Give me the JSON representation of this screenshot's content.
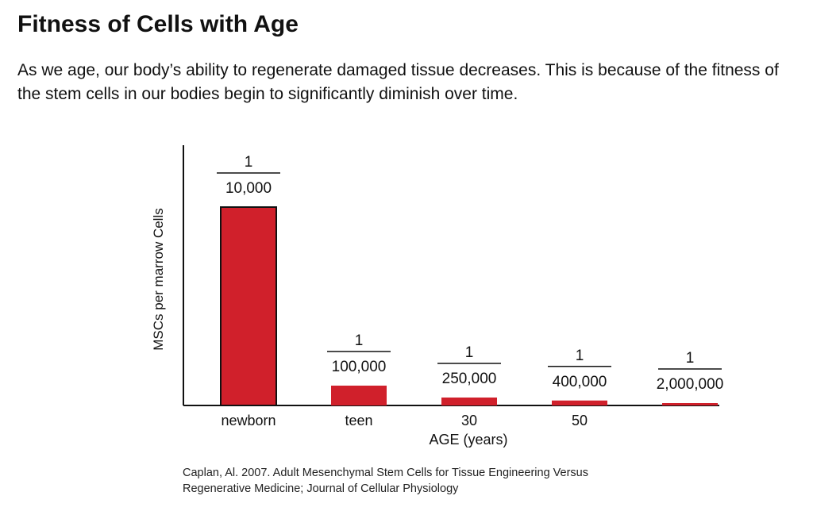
{
  "header": {
    "title": "Fitness of Cells with Age",
    "intro": "As we age, our body’s ability to regenerate damaged tissue decreases.  This is because of the fitness of the stem cells in our bodies begin to significantly diminish over time."
  },
  "chart_data": {
    "type": "bar",
    "categories": [
      "newborn",
      "teen",
      "30",
      "50",
      ""
    ],
    "values": [
      0.0001,
      1e-05,
      4e-06,
      2.5e-06,
      5e-07
    ],
    "data_labels": [
      {
        "numerator": "1",
        "denominator": "10,000"
      },
      {
        "numerator": "1",
        "denominator": "100,000"
      },
      {
        "numerator": "1",
        "denominator": "250,000"
      },
      {
        "numerator": "1",
        "denominator": "400,000"
      },
      {
        "numerator": "1",
        "denominator": "2,000,000"
      }
    ],
    "xlabel": "AGE (years)",
    "ylabel": "MSCs per marrow Cells",
    "bar_color": "#d0202b",
    "grid": false
  },
  "citation": {
    "line1": "Caplan, Al. 2007. Adult Mesenchymal Stem Cells for Tissue Engineering Versus",
    "line2": "Regenerative Medicine; Journal of Cellular Physiology"
  }
}
